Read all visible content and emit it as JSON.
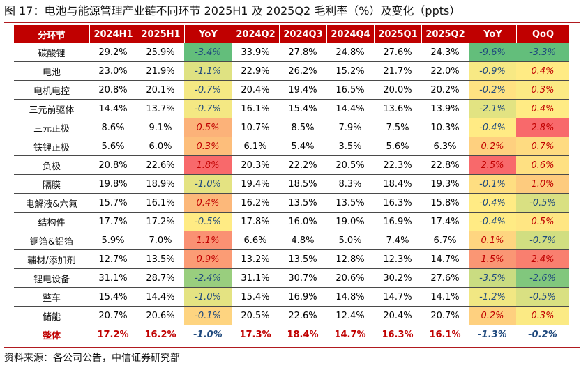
{
  "title": "图 17：电池与能源管理产业链不同环节 2025H1 及 2025Q2 毛利率（%）及变化（ppts）",
  "source": "资料来源：各公司公告，中信证券研究部",
  "colors": {
    "header_bg": "#c00000",
    "rule": "#b01a1f",
    "neg_text": "#1f497d",
    "pos_text": "#c00000",
    "heat_low": "#63be7b",
    "heat_mid": "#ffeb84",
    "heat_high": "#f8696b"
  },
  "table": {
    "headers": [
      "分环节",
      "2024H1",
      "2025H1",
      "YoY",
      "2024Q2",
      "2024Q3",
      "2024Q4",
      "2025Q1",
      "2025Q2",
      "YoY",
      "QoQ"
    ],
    "rows": [
      {
        "name": "碳酸锂",
        "v": [
          "29.2%",
          "25.9%",
          "-3.4%",
          "33.9%",
          "27.8%",
          "24.8%",
          "27.6%",
          "24.3%",
          "-9.6%",
          "-3.3%"
        ]
      },
      {
        "name": "电池",
        "v": [
          "23.0%",
          "21.9%",
          "-1.1%",
          "22.9%",
          "26.2%",
          "15.2%",
          "21.7%",
          "22.0%",
          "-0.9%",
          "0.4%"
        ]
      },
      {
        "name": "电机电控",
        "v": [
          "20.8%",
          "20.1%",
          "-0.7%",
          "20.4%",
          "19.4%",
          "16.5%",
          "20.0%",
          "20.2%",
          "-0.2%",
          "0.3%"
        ]
      },
      {
        "name": "三元前驱体",
        "v": [
          "14.4%",
          "13.7%",
          "-0.7%",
          "16.1%",
          "15.4%",
          "14.4%",
          "13.6%",
          "13.9%",
          "-2.1%",
          "0.4%"
        ]
      },
      {
        "name": "三元正极",
        "v": [
          "8.6%",
          "9.1%",
          "0.5%",
          "10.7%",
          "8.5%",
          "7.9%",
          "7.5%",
          "10.3%",
          "-0.4%",
          "2.8%"
        ]
      },
      {
        "name": "铁锂正极",
        "v": [
          "5.6%",
          "6.0%",
          "0.3%",
          "6.1%",
          "5.4%",
          "3.5%",
          "5.6%",
          "6.3%",
          "0.2%",
          "0.7%"
        ]
      },
      {
        "name": "负极",
        "v": [
          "20.8%",
          "22.6%",
          "1.8%",
          "20.3%",
          "22.2%",
          "20.5%",
          "22.3%",
          "22.8%",
          "2.5%",
          "0.6%"
        ]
      },
      {
        "name": "隔膜",
        "v": [
          "19.8%",
          "18.9%",
          "-1.0%",
          "19.4%",
          "18.5%",
          "8.3%",
          "18.4%",
          "19.3%",
          "-0.1%",
          "1.0%"
        ]
      },
      {
        "name": "电解液&六氟",
        "v": [
          "15.7%",
          "16.1%",
          "0.4%",
          "16.2%",
          "13.5%",
          "13.5%",
          "16.3%",
          "15.8%",
          "-0.4%",
          "-0.5%"
        ]
      },
      {
        "name": "结构件",
        "v": [
          "17.7%",
          "17.2%",
          "-0.5%",
          "17.8%",
          "16.0%",
          "19.0%",
          "16.9%",
          "17.4%",
          "-0.4%",
          "0.5%"
        ]
      },
      {
        "name": "铜箔&铝箔",
        "v": [
          "5.9%",
          "7.0%",
          "1.1%",
          "6.6%",
          "4.8%",
          "5.0%",
          "7.4%",
          "6.7%",
          "0.1%",
          "-0.7%"
        ]
      },
      {
        "name": "辅材/添加剂",
        "v": [
          "12.7%",
          "13.5%",
          "0.9%",
          "13.2%",
          "13.5%",
          "12.8%",
          "12.3%",
          "14.7%",
          "1.5%",
          "2.4%"
        ]
      },
      {
        "name": "锂电设备",
        "v": [
          "31.1%",
          "28.7%",
          "-2.4%",
          "31.1%",
          "30.7%",
          "20.6%",
          "30.2%",
          "27.6%",
          "-3.5%",
          "-2.6%"
        ]
      },
      {
        "name": "整车",
        "v": [
          "15.4%",
          "14.4%",
          "-1.0%",
          "15.4%",
          "16.9%",
          "14.8%",
          "14.7%",
          "14.1%",
          "-1.2%",
          "-0.5%"
        ]
      },
      {
        "name": "储能",
        "v": [
          "20.7%",
          "20.6%",
          "-0.1%",
          "20.5%",
          "22.6%",
          "12.4%",
          "20.4%",
          "20.7%",
          "0.2%",
          "0.3%"
        ]
      }
    ],
    "total": {
      "name": "整体",
      "v": [
        "17.2%",
        "16.2%",
        "-1.0%",
        "17.3%",
        "18.4%",
        "14.7%",
        "16.3%",
        "16.1%",
        "-1.3%",
        "-0.2%"
      ]
    }
  }
}
